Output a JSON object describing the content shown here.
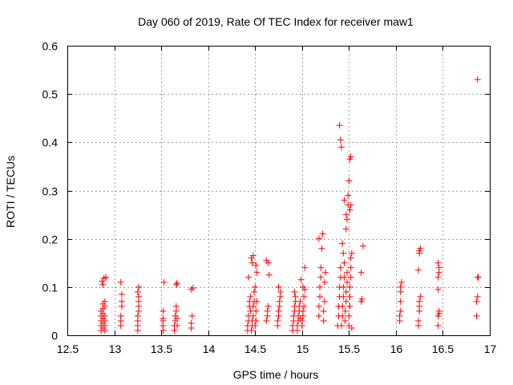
{
  "chart_data": {
    "type": "scatter",
    "title": "Day 060 of 2019, Rate Of TEC Index for receiver maw1",
    "xlabel": "GPS time / hours",
    "ylabel": "ROTI / TECUs",
    "xlim": [
      12.5,
      17
    ],
    "ylim": [
      0,
      0.6
    ],
    "x_ticks": [
      "12.5",
      "13",
      "13.5",
      "14",
      "14.5",
      "15",
      "15.5",
      "16",
      "16.5",
      "17"
    ],
    "y_ticks": [
      "0",
      "0.1",
      "0.2",
      "0.3",
      "0.4",
      "0.5",
      "0.6"
    ],
    "grid": true,
    "marker": "plus",
    "point_color": "#ff0000",
    "series": [
      {
        "points": [
          [
            12.86,
            0.01
          ],
          [
            12.86,
            0.02
          ],
          [
            12.86,
            0.03
          ],
          [
            12.86,
            0.04
          ],
          [
            12.86,
            0.05
          ],
          [
            12.88,
            0.015
          ],
          [
            12.88,
            0.025
          ],
          [
            12.88,
            0.035
          ],
          [
            12.88,
            0.045
          ],
          [
            12.88,
            0.055
          ],
          [
            12.88,
            0.065
          ],
          [
            12.9,
            0.01
          ],
          [
            12.9,
            0.02
          ],
          [
            12.9,
            0.03
          ],
          [
            12.9,
            0.04
          ],
          [
            12.9,
            0.06
          ],
          [
            12.9,
            0.07
          ],
          [
            12.87,
            0.112
          ],
          [
            12.89,
            0.118
          ],
          [
            12.91,
            0.12
          ],
          [
            12.88,
            0.105
          ],
          [
            13.07,
            0.02
          ],
          [
            13.07,
            0.03
          ],
          [
            13.07,
            0.04
          ],
          [
            13.08,
            0.06
          ],
          [
            13.08,
            0.07
          ],
          [
            13.07,
            0.11
          ],
          [
            13.08,
            0.085
          ],
          [
            13.25,
            0.01
          ],
          [
            13.25,
            0.02
          ],
          [
            13.25,
            0.03
          ],
          [
            13.25,
            0.04
          ],
          [
            13.26,
            0.05
          ],
          [
            13.26,
            0.06
          ],
          [
            13.26,
            0.07
          ],
          [
            13.26,
            0.08
          ],
          [
            13.25,
            0.09
          ],
          [
            13.26,
            0.1
          ],
          [
            13.52,
            0.01
          ],
          [
            13.52,
            0.02
          ],
          [
            13.52,
            0.03
          ],
          [
            13.52,
            0.035
          ],
          [
            13.52,
            0.05
          ],
          [
            13.53,
            0.11
          ],
          [
            13.64,
            0.01
          ],
          [
            13.64,
            0.02
          ],
          [
            13.65,
            0.03
          ],
          [
            13.65,
            0.04
          ],
          [
            13.66,
            0.05
          ],
          [
            13.66,
            0.06
          ],
          [
            13.67,
            0.02
          ],
          [
            13.67,
            0.035
          ],
          [
            13.66,
            0.105
          ],
          [
            13.67,
            0.108
          ],
          [
            13.82,
            0.015
          ],
          [
            13.82,
            0.025
          ],
          [
            13.83,
            0.04
          ],
          [
            13.84,
            0.098
          ],
          [
            13.82,
            0.095
          ],
          [
            14.42,
            0.01
          ],
          [
            14.42,
            0.02
          ],
          [
            14.43,
            0.03
          ],
          [
            14.43,
            0.04
          ],
          [
            14.44,
            0.06
          ],
          [
            14.44,
            0.07
          ],
          [
            14.45,
            0.08
          ],
          [
            14.45,
            0.05
          ],
          [
            14.43,
            0.12
          ],
          [
            14.46,
            0.01
          ],
          [
            14.47,
            0.02
          ],
          [
            14.47,
            0.03
          ],
          [
            14.48,
            0.04
          ],
          [
            14.48,
            0.06
          ],
          [
            14.49,
            0.07
          ],
          [
            14.49,
            0.09
          ],
          [
            14.5,
            0.1
          ],
          [
            14.47,
            0.15
          ],
          [
            14.46,
            0.16
          ],
          [
            14.48,
            0.165
          ],
          [
            14.5,
            0.02
          ],
          [
            14.51,
            0.03
          ],
          [
            14.51,
            0.05
          ],
          [
            14.52,
            0.07
          ],
          [
            14.52,
            0.13
          ],
          [
            14.51,
            0.145
          ],
          [
            14.62,
            0.03
          ],
          [
            14.63,
            0.04
          ],
          [
            14.63,
            0.05
          ],
          [
            14.64,
            0.06
          ],
          [
            14.62,
            0.155
          ],
          [
            14.64,
            0.15
          ],
          [
            14.65,
            0.125
          ],
          [
            14.74,
            0.02
          ],
          [
            14.74,
            0.03
          ],
          [
            14.75,
            0.04
          ],
          [
            14.75,
            0.05
          ],
          [
            14.76,
            0.06
          ],
          [
            14.76,
            0.07
          ],
          [
            14.77,
            0.08
          ],
          [
            14.75,
            0.1
          ],
          [
            14.77,
            0.09
          ],
          [
            14.9,
            0.01
          ],
          [
            14.9,
            0.02
          ],
          [
            14.91,
            0.03
          ],
          [
            14.91,
            0.04
          ],
          [
            14.92,
            0.05
          ],
          [
            14.92,
            0.06
          ],
          [
            14.93,
            0.07
          ],
          [
            14.93,
            0.08
          ],
          [
            14.92,
            0.09
          ],
          [
            14.95,
            0.01
          ],
          [
            14.95,
            0.02
          ],
          [
            14.96,
            0.03
          ],
          [
            14.96,
            0.04
          ],
          [
            14.97,
            0.05
          ],
          [
            14.97,
            0.06
          ],
          [
            14.98,
            0.07
          ],
          [
            14.98,
            0.035
          ],
          [
            15.0,
            0.02
          ],
          [
            15.0,
            0.03
          ],
          [
            15.01,
            0.04
          ],
          [
            15.01,
            0.05
          ],
          [
            15.02,
            0.06
          ],
          [
            15.02,
            0.08
          ],
          [
            15.01,
            0.1
          ],
          [
            15.03,
            0.095
          ],
          [
            15.03,
            0.14
          ],
          [
            14.99,
            0.115
          ],
          [
            15.18,
            0.04
          ],
          [
            15.18,
            0.06
          ],
          [
            15.19,
            0.08
          ],
          [
            15.19,
            0.1
          ],
          [
            15.2,
            0.12
          ],
          [
            15.2,
            0.14
          ],
          [
            15.18,
            0.2
          ],
          [
            15.21,
            0.18
          ],
          [
            15.22,
            0.21
          ],
          [
            15.23,
            0.03
          ],
          [
            15.23,
            0.05
          ],
          [
            15.24,
            0.07
          ],
          [
            15.24,
            0.11
          ],
          [
            15.25,
            0.13
          ],
          [
            15.38,
            0.02
          ],
          [
            15.39,
            0.04
          ],
          [
            15.39,
            0.06
          ],
          [
            15.4,
            0.08
          ],
          [
            15.4,
            0.1
          ],
          [
            15.41,
            0.12
          ],
          [
            15.41,
            0.14
          ],
          [
            15.4,
            0.435
          ],
          [
            15.41,
            0.405
          ],
          [
            15.42,
            0.39
          ],
          [
            15.42,
            0.02
          ],
          [
            15.43,
            0.04
          ],
          [
            15.43,
            0.06
          ],
          [
            15.44,
            0.08
          ],
          [
            15.44,
            0.1
          ],
          [
            15.45,
            0.12
          ],
          [
            15.45,
            0.15
          ],
          [
            15.44,
            0.17
          ],
          [
            15.43,
            0.19
          ],
          [
            15.45,
            0.28
          ],
          [
            15.46,
            0.03
          ],
          [
            15.46,
            0.05
          ],
          [
            15.47,
            0.07
          ],
          [
            15.47,
            0.09
          ],
          [
            15.48,
            0.11
          ],
          [
            15.48,
            0.13
          ],
          [
            15.47,
            0.22
          ],
          [
            15.48,
            0.24
          ],
          [
            15.47,
            0.25
          ],
          [
            15.49,
            0.27
          ],
          [
            15.49,
            0.29
          ],
          [
            15.5,
            0.32
          ],
          [
            15.5,
            0.02
          ],
          [
            15.5,
            0.04
          ],
          [
            15.51,
            0.06
          ],
          [
            15.51,
            0.08
          ],
          [
            15.51,
            0.1
          ],
          [
            15.52,
            0.12
          ],
          [
            15.52,
            0.14
          ],
          [
            15.51,
            0.26
          ],
          [
            15.52,
            0.27
          ],
          [
            15.51,
            0.365
          ],
          [
            15.52,
            0.37
          ],
          [
            15.52,
            0.16
          ],
          [
            15.53,
            0.17
          ],
          [
            15.53,
            0.015
          ],
          [
            15.63,
            0.07
          ],
          [
            15.64,
            0.075
          ],
          [
            15.63,
            0.13
          ],
          [
            15.65,
            0.185
          ],
          [
            16.04,
            0.03
          ],
          [
            16.04,
            0.04
          ],
          [
            16.05,
            0.05
          ],
          [
            16.05,
            0.07
          ],
          [
            16.05,
            0.09
          ],
          [
            16.05,
            0.1
          ],
          [
            16.06,
            0.11
          ],
          [
            16.24,
            0.02
          ],
          [
            16.24,
            0.03
          ],
          [
            16.25,
            0.05
          ],
          [
            16.25,
            0.06
          ],
          [
            16.25,
            0.07
          ],
          [
            16.26,
            0.08
          ],
          [
            16.24,
            0.135
          ],
          [
            16.25,
            0.17
          ],
          [
            16.25,
            0.175
          ],
          [
            16.26,
            0.18
          ],
          [
            16.45,
            0.02
          ],
          [
            16.45,
            0.04
          ],
          [
            16.46,
            0.045
          ],
          [
            16.46,
            0.05
          ],
          [
            16.45,
            0.095
          ],
          [
            16.45,
            0.12
          ],
          [
            16.46,
            0.13
          ],
          [
            16.46,
            0.14
          ],
          [
            16.45,
            0.15
          ],
          [
            16.86,
            0.04
          ],
          [
            16.86,
            0.07
          ],
          [
            16.87,
            0.08
          ],
          [
            16.87,
            0.12
          ],
          [
            16.88,
            0.12
          ],
          [
            16.87,
            0.53
          ]
        ]
      }
    ]
  }
}
